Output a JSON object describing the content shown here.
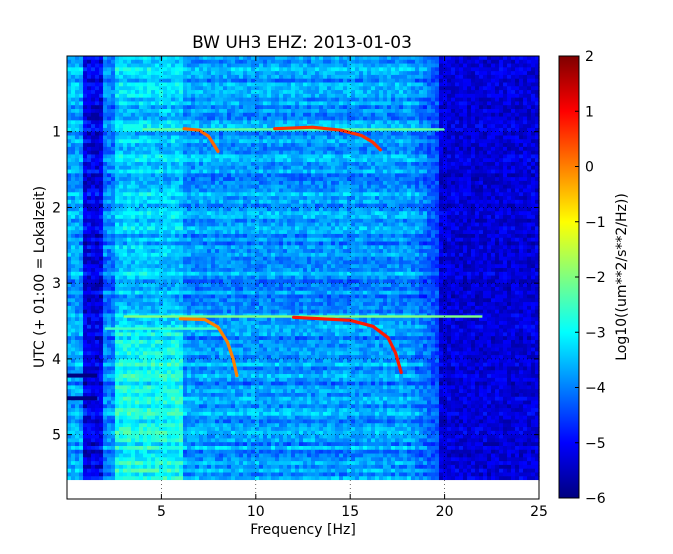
{
  "chart_data": {
    "type": "heatmap",
    "title": "BW UH3 EHZ: 2013-01-03",
    "xlabel": "Frequency [Hz]",
    "ylabel": "UTC (+ 01:00 = Lokalzeit)",
    "xlim": [
      0,
      25
    ],
    "ylim": [
      5.85,
      0.0
    ],
    "x_ticks": [
      5,
      10,
      15,
      20,
      25
    ],
    "y_ticks": [
      1,
      2,
      3,
      4,
      5
    ],
    "grid": "dotted vertical and horizontal at major ticks",
    "colorbar": {
      "label": "Log10((um**2/s**2/Hz))",
      "range": [
        -6,
        2
      ],
      "ticks": [
        2,
        1,
        0,
        -1,
        -2,
        -3,
        -4,
        -5,
        -6
      ],
      "colormap": "jet"
    },
    "no_data_region": {
      "time_from": 5.6,
      "time_to": 5.85,
      "color": "#ffffff"
    },
    "levels": {
      "background_low_freq": -4.0,
      "band_2_to_6_hz": -3.4,
      "band_6_to_18_hz": -3.8,
      "above_19_hz": -5.3,
      "blue_stripe_1_hz": -5.2
    },
    "tonal_traces": [
      {
        "name": "trace_a",
        "points": [
          [
            6.2,
            0.96
          ],
          [
            7.0,
            0.98
          ],
          [
            7.5,
            1.06
          ],
          [
            7.8,
            1.18
          ],
          [
            8.0,
            1.26
          ]
        ],
        "level": 0.2
      },
      {
        "name": "trace_b",
        "points": [
          [
            11.0,
            0.96
          ],
          [
            13.0,
            0.94
          ],
          [
            14.5,
            0.98
          ],
          [
            15.6,
            1.05
          ],
          [
            16.2,
            1.14
          ],
          [
            16.6,
            1.24
          ]
        ],
        "level": 0.6
      },
      {
        "name": "trace_c",
        "points": [
          [
            6.0,
            3.47
          ],
          [
            7.3,
            3.48
          ],
          [
            8.0,
            3.58
          ],
          [
            8.5,
            3.78
          ],
          [
            8.8,
            4.0
          ],
          [
            9.0,
            4.22
          ]
        ],
        "level": 0.0
      },
      {
        "name": "trace_d",
        "points": [
          [
            12.0,
            3.45
          ],
          [
            15.0,
            3.49
          ],
          [
            16.2,
            3.57
          ],
          [
            17.0,
            3.72
          ],
          [
            17.4,
            3.92
          ],
          [
            17.7,
            4.18
          ]
        ],
        "level": 0.8
      }
    ],
    "horizontal_lines": [
      {
        "time": 0.97,
        "from": 4.0,
        "to": 20.0,
        "level": -2.2
      },
      {
        "time": 3.44,
        "from": 3.0,
        "to": 22.0,
        "level": -2.0
      },
      {
        "time": 3.6,
        "from": 2.0,
        "to": 8.0,
        "level": -2.5
      }
    ],
    "dark_blocks": [
      {
        "time": 4.22,
        "from": 0.0,
        "to": 1.6
      },
      {
        "time": 4.52,
        "from": 0.0,
        "to": 1.6
      }
    ]
  }
}
